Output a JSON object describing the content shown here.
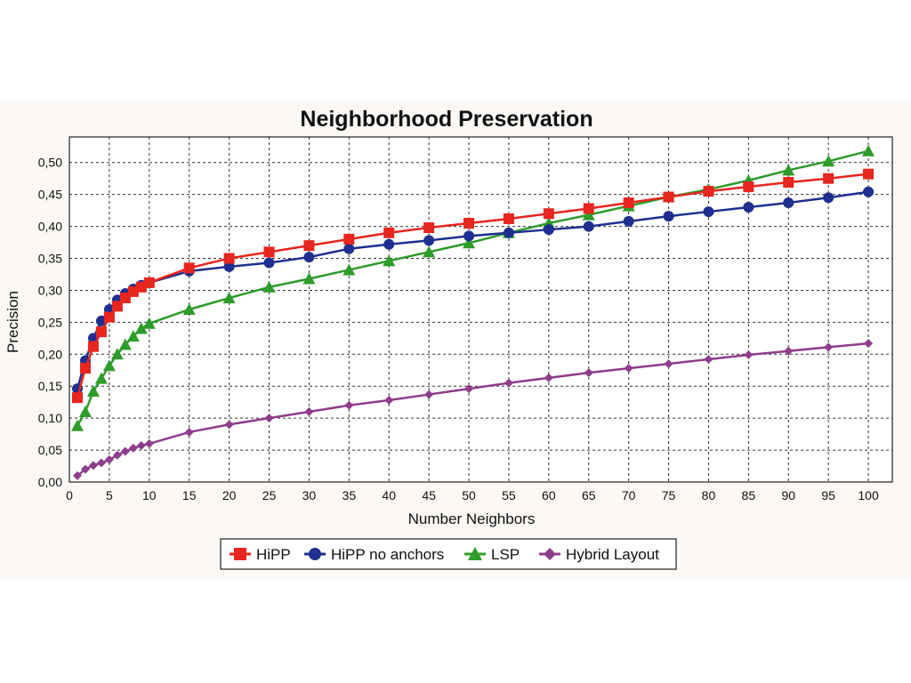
{
  "chart_data": {
    "type": "line",
    "title": "Neighborhood Preservation",
    "xlabel": "Number Neighbors",
    "ylabel": "Precision",
    "xlim": [
      0,
      103
    ],
    "ylim": [
      0,
      0.54
    ],
    "x_ticks": [
      "0",
      "5",
      "10",
      "15",
      "20",
      "25",
      "30",
      "35",
      "40",
      "45",
      "50",
      "55",
      "60",
      "65",
      "70",
      "75",
      "80",
      "85",
      "90",
      "95",
      "100"
    ],
    "x_tick_values": [
      0,
      5,
      10,
      15,
      20,
      25,
      30,
      35,
      40,
      45,
      50,
      55,
      60,
      65,
      70,
      75,
      80,
      85,
      90,
      95,
      100
    ],
    "y_ticks": [
      "0,00",
      "0,05",
      "0,10",
      "0,15",
      "0,20",
      "0,25",
      "0,30",
      "0,35",
      "0,40",
      "0,45",
      "0,50"
    ],
    "y_tick_values": [
      0,
      0.05,
      0.1,
      0.15,
      0.2,
      0.25,
      0.3,
      0.35,
      0.4,
      0.45,
      0.5
    ],
    "grid": true,
    "legend_position": "bottom",
    "x": [
      1,
      2,
      3,
      4,
      5,
      6,
      7,
      8,
      9,
      10,
      15,
      20,
      25,
      30,
      35,
      40,
      45,
      50,
      55,
      60,
      65,
      70,
      75,
      80,
      85,
      90,
      95,
      100
    ],
    "series": [
      {
        "name": "HiPP",
        "color": "#e8251e",
        "marker": "square",
        "values": [
          0.132,
          0.178,
          0.212,
          0.235,
          0.258,
          0.275,
          0.288,
          0.298,
          0.305,
          0.312,
          0.335,
          0.35,
          0.36,
          0.37,
          0.38,
          0.39,
          0.398,
          0.405,
          0.412,
          0.42,
          0.428,
          0.437,
          0.446,
          0.455,
          0.462,
          0.469,
          0.475,
          0.482
        ]
      },
      {
        "name": "HiPP no anchors",
        "color": "#1f2f8f",
        "marker": "circle",
        "values": [
          0.146,
          0.19,
          0.225,
          0.252,
          0.27,
          0.285,
          0.295,
          0.302,
          0.308,
          0.312,
          0.33,
          0.337,
          0.343,
          0.352,
          0.365,
          0.372,
          0.378,
          0.385,
          0.39,
          0.395,
          0.4,
          0.408,
          0.416,
          0.423,
          0.43,
          0.437,
          0.445,
          0.454
        ]
      },
      {
        "name": "LSP",
        "color": "#2e9c2a",
        "marker": "triangle",
        "values": [
          0.088,
          0.11,
          0.142,
          0.162,
          0.182,
          0.2,
          0.215,
          0.228,
          0.24,
          0.248,
          0.27,
          0.288,
          0.305,
          0.318,
          0.332,
          0.346,
          0.36,
          0.374,
          0.39,
          0.405,
          0.418,
          0.432,
          0.446,
          0.458,
          0.472,
          0.488,
          0.502,
          0.518
        ]
      },
      {
        "name": "Hybrid Layout",
        "color": "#8e3d8c",
        "marker": "diamond",
        "values": [
          0.01,
          0.02,
          0.026,
          0.03,
          0.035,
          0.042,
          0.048,
          0.053,
          0.057,
          0.06,
          0.078,
          0.09,
          0.1,
          0.11,
          0.12,
          0.128,
          0.137,
          0.146,
          0.155,
          0.163,
          0.171,
          0.178,
          0.185,
          0.192,
          0.199,
          0.205,
          0.211,
          0.217
        ]
      }
    ]
  }
}
